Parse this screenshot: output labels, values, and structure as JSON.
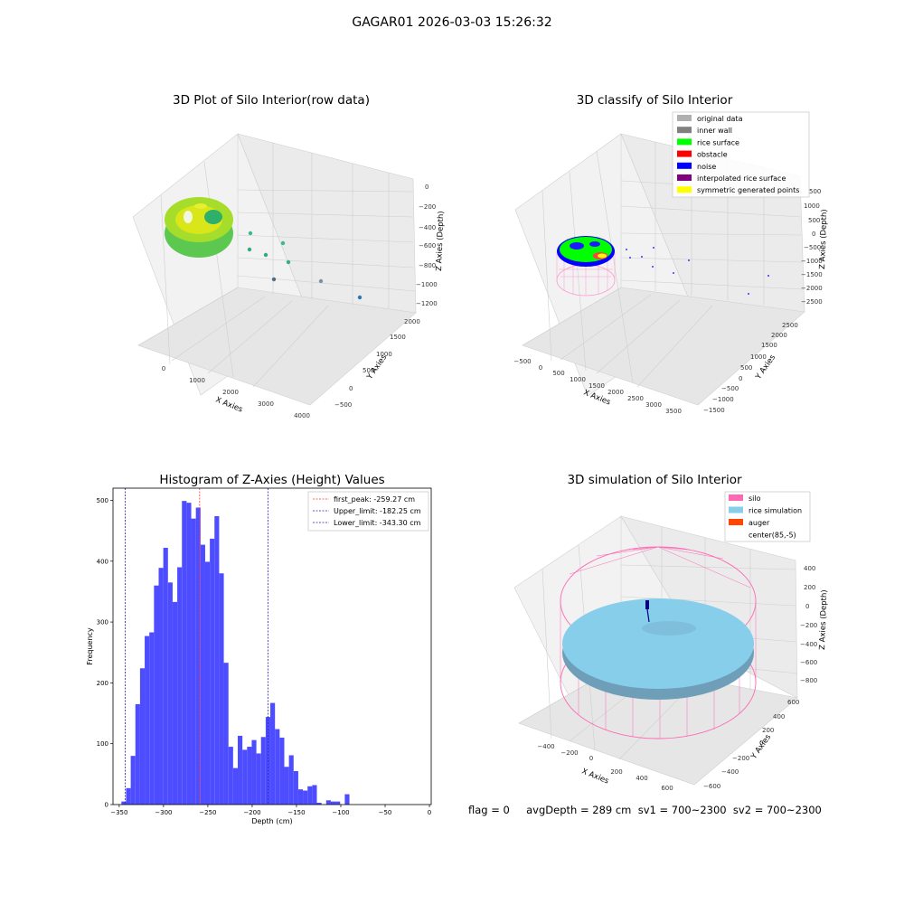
{
  "suptitle": "GAGAR01 2026-03-03 15:26:32",
  "footer": "flag = 0     avgDepth = 289 cm  sv1 = 700~2300  sv2 = 700~2300",
  "colors": {
    "histogram_bar": "#4d4dff",
    "first_peak": "#ff3333",
    "limits": "#2222aa",
    "silo": "#ff69b4",
    "rice_simulation": "#87ceeb",
    "auger": "#ff4500",
    "rice_surface": "#00ff00",
    "noise": "#0000ff"
  },
  "chart_data": [
    {
      "type": "scatter",
      "title": "3D Plot of Silo Interior(row data)",
      "xlabel": "X Axies",
      "ylabel": "Y Axies",
      "zlabel": "Z Axies (Depth)",
      "x_ticks": [
        "0",
        "1000",
        "2000",
        "3000",
        "4000"
      ],
      "y_ticks": [
        "−500",
        "0",
        "500",
        "1000",
        "1500",
        "2000"
      ],
      "z_ticks": [
        "0",
        "−200",
        "−400",
        "−600",
        "−800",
        "−1000",
        "−1200"
      ],
      "grid": true
    },
    {
      "type": "scatter",
      "title": "3D classify of Silo Interior",
      "xlabel": "X Axies",
      "ylabel": "Y Axies",
      "zlabel": "Z Axies (Depth)",
      "x_ticks": [
        "−500",
        "0",
        "500",
        "1000",
        "1500",
        "2000",
        "2500",
        "3000",
        "3500"
      ],
      "y_ticks": [
        "−1500",
        "−1000",
        "−500",
        "0",
        "500",
        "1000",
        "1500",
        "2000",
        "2500"
      ],
      "z_ticks": [
        "1000",
        "500",
        "0",
        "−500",
        "−1000",
        "−1500",
        "−2000",
        "−2500"
      ],
      "extra_z_tick": "500",
      "legend": [
        {
          "label": "original data",
          "color": "#b0b0b0"
        },
        {
          "label": "inner wall",
          "color": "#808080"
        },
        {
          "label": "rice surface",
          "color": "#00ff00"
        },
        {
          "label": "obstacle",
          "color": "#ff0000"
        },
        {
          "label": "noise",
          "color": "#0000ff"
        },
        {
          "label": "interpolated rice surface",
          "color": "#800080"
        },
        {
          "label": "symmetric generated points",
          "color": "#ffff00"
        }
      ],
      "legend_position": "top-right",
      "grid": true
    },
    {
      "type": "bar",
      "title": "Histogram of Z-Axies (Height) Values",
      "xlabel": "Depth (cm)",
      "ylabel": "Frequency",
      "xlim": [
        -357,
        2
      ],
      "ylim": [
        0,
        520
      ],
      "x_ticks": [
        "−350",
        "−300",
        "−250",
        "−200",
        "−150",
        "−100",
        "−50",
        "0"
      ],
      "y_ticks": [
        "0",
        "100",
        "200",
        "300",
        "400",
        "500"
      ],
      "bin_start": -347.5,
      "bin_width": 5.25,
      "values": [
        5,
        27,
        80,
        165,
        224,
        277,
        283,
        360,
        389,
        422,
        365,
        333,
        390,
        499,
        496,
        470,
        488,
        427,
        399,
        437,
        474,
        380,
        233,
        95,
        60,
        113,
        90,
        95,
        106,
        84,
        111,
        144,
        167,
        124,
        110,
        62,
        81,
        55,
        25,
        23,
        30,
        32,
        3,
        0,
        7,
        5,
        5,
        0,
        17
      ],
      "vlines": [
        {
          "label": "first_peak: -259.27 cm",
          "x": -259.27,
          "color": "#ff3333"
        },
        {
          "label": "Upper_limit: -182.25 cm",
          "x": -182.25,
          "color": "#2222aa"
        },
        {
          "label": "Lower_limit: -343.30 cm",
          "x": -343.3,
          "color": "#2222aa"
        }
      ],
      "legend_position": "top-right"
    },
    {
      "type": "scatter",
      "title": "3D simulation of Silo Interior",
      "xlabel": "X Axies",
      "ylabel": "Y Axies",
      "zlabel": "Z Axies (Depth)",
      "x_ticks": [
        "−400",
        "−200",
        "0",
        "200",
        "400",
        "600"
      ],
      "y_ticks": [
        "−600",
        "−400",
        "−200",
        "0",
        "200",
        "400",
        "600"
      ],
      "z_ticks": [
        "400",
        "200",
        "0",
        "−200",
        "−400",
        "−600",
        "−800"
      ],
      "legend": [
        {
          "label": "silo",
          "color": "#ff69b4"
        },
        {
          "label": "rice simulation",
          "color": "#87ceeb"
        },
        {
          "label": "auger",
          "color": "#ff4500"
        },
        {
          "label": "center(85,-5)",
          "color": ""
        }
      ],
      "legend_position": "top-right",
      "grid": true
    }
  ]
}
